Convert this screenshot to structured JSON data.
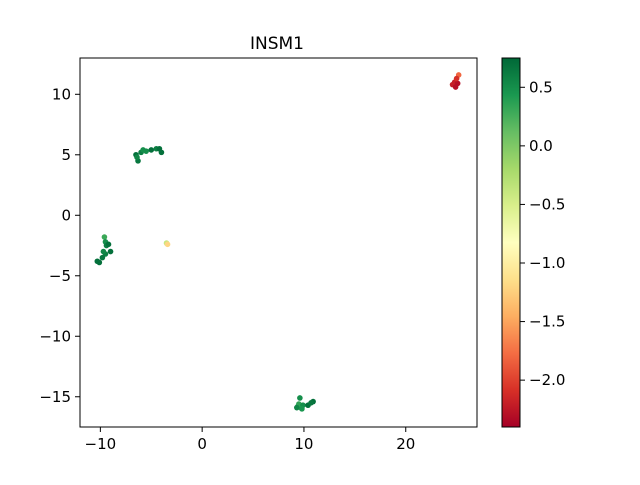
{
  "chart_data": {
    "type": "scatter",
    "title": "INSM1",
    "xlabel": "",
    "ylabel": "",
    "xlim": [
      -12,
      27
    ],
    "ylim": [
      -17.5,
      13
    ],
    "xticks": [
      -10,
      0,
      10,
      20
    ],
    "yticks": [
      10,
      5,
      0,
      -5,
      -10,
      -15
    ],
    "xtick_labels": [
      "−10",
      "0",
      "10",
      "20"
    ],
    "ytick_labels": [
      "10",
      "5",
      "0",
      "−5",
      "−10",
      "−15"
    ],
    "grid": false,
    "colormap": "RdYlGn",
    "colorbar": {
      "min": -2.4,
      "max": 0.75,
      "ticks": [
        0.5,
        0.0,
        -0.5,
        -1.0,
        -1.5,
        -2.0
      ],
      "tick_labels": [
        "0.5",
        "0.0",
        "−0.5",
        "−1.0",
        "−1.5",
        "−2.0"
      ]
    },
    "points": [
      {
        "x": 25.2,
        "y": 11.6,
        "v": -1.8
      },
      {
        "x": 24.8,
        "y": 11.0,
        "v": -2.2
      },
      {
        "x": 25.1,
        "y": 10.9,
        "v": -2.3
      },
      {
        "x": 24.6,
        "y": 10.8,
        "v": -2.2
      },
      {
        "x": 24.9,
        "y": 10.6,
        "v": -2.3
      },
      {
        "x": 25.0,
        "y": 11.3,
        "v": -2.1
      },
      {
        "x": -6.5,
        "y": 5.0,
        "v": 0.7
      },
      {
        "x": -6.3,
        "y": 4.5,
        "v": 0.65
      },
      {
        "x": -6.0,
        "y": 5.2,
        "v": 0.6
      },
      {
        "x": -5.5,
        "y": 5.3,
        "v": 0.5
      },
      {
        "x": -5.0,
        "y": 5.4,
        "v": 0.7
      },
      {
        "x": -4.5,
        "y": 5.5,
        "v": 0.6
      },
      {
        "x": -4.2,
        "y": 5.5,
        "v": 0.7
      },
      {
        "x": -4.0,
        "y": 5.2,
        "v": 0.7
      },
      {
        "x": -6.4,
        "y": 4.8,
        "v": 0.55
      },
      {
        "x": -5.8,
        "y": 5.4,
        "v": 0.5
      },
      {
        "x": -3.5,
        "y": -2.3,
        "v": -0.4
      },
      {
        "x": -3.4,
        "y": -2.4,
        "v": -1.2
      },
      {
        "x": -9.6,
        "y": -1.8,
        "v": 0.3
      },
      {
        "x": -9.5,
        "y": -2.2,
        "v": 0.5
      },
      {
        "x": -9.4,
        "y": -2.5,
        "v": 0.6
      },
      {
        "x": -9.2,
        "y": -2.4,
        "v": 0.7
      },
      {
        "x": -9.0,
        "y": -3.0,
        "v": 0.7
      },
      {
        "x": -9.5,
        "y": -3.2,
        "v": 0.6
      },
      {
        "x": -9.8,
        "y": -3.5,
        "v": 0.65
      },
      {
        "x": -10.3,
        "y": -3.8,
        "v": 0.7
      },
      {
        "x": -10.1,
        "y": -3.9,
        "v": 0.7
      },
      {
        "x": -9.7,
        "y": -3.0,
        "v": 0.55
      },
      {
        "x": 9.6,
        "y": -15.1,
        "v": 0.5
      },
      {
        "x": 9.4,
        "y": -15.8,
        "v": 0.6
      },
      {
        "x": 9.7,
        "y": -15.9,
        "v": 0.3
      },
      {
        "x": 9.5,
        "y": -15.6,
        "v": 0.35
      },
      {
        "x": 9.9,
        "y": -15.7,
        "v": 0.5
      },
      {
        "x": 10.4,
        "y": -15.7,
        "v": 0.7
      },
      {
        "x": 10.9,
        "y": -15.4,
        "v": 0.7
      },
      {
        "x": 10.7,
        "y": -15.5,
        "v": 0.65
      },
      {
        "x": 9.3,
        "y": -15.9,
        "v": 0.55
      },
      {
        "x": 9.8,
        "y": -16.0,
        "v": 0.45
      }
    ]
  }
}
